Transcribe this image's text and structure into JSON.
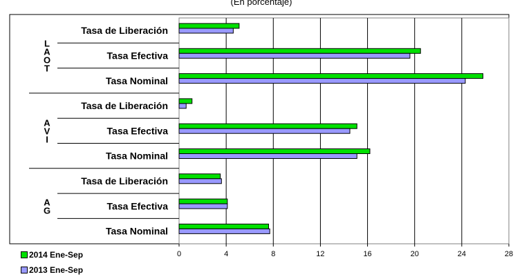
{
  "chart_data": {
    "type": "bar",
    "orientation": "horizontal",
    "subtitle": "(En porcentaje)",
    "groups": [
      {
        "label_chars": [
          "L",
          "A",
          "O",
          "T"
        ],
        "rows": [
          {
            "label": "Tasa de Liberación",
            "values": [
              5.1,
              4.6
            ]
          },
          {
            "label": "Tasa Efectiva",
            "values": [
              20.5,
              19.6
            ]
          },
          {
            "label": "Tasa Nominal",
            "values": [
              25.8,
              24.3
            ]
          }
        ]
      },
      {
        "label_chars": [
          "A",
          "V",
          "I"
        ],
        "rows": [
          {
            "label": "Tasa de Liberación",
            "values": [
              1.1,
              0.6
            ]
          },
          {
            "label": "Tasa Efectiva",
            "values": [
              15.1,
              14.5
            ]
          },
          {
            "label": "Tasa Nominal",
            "values": [
              16.2,
              15.1
            ]
          }
        ]
      },
      {
        "label_chars": [
          "A",
          "G"
        ],
        "rows": [
          {
            "label": "Tasa de Liberación",
            "values": [
              3.5,
              3.6
            ]
          },
          {
            "label": "Tasa Efectiva",
            "values": [
              4.1,
              4.1
            ]
          },
          {
            "label": "Tasa Nominal",
            "values": [
              7.6,
              7.7
            ]
          }
        ]
      }
    ],
    "series": [
      {
        "name": "2014 Ene-Sep",
        "color": "#00e000"
      },
      {
        "name": "2013 Ene-Sep",
        "color": "#9999ff"
      }
    ],
    "xlim": [
      0,
      28
    ],
    "xticks": [
      "0",
      "4",
      "8",
      "12",
      "16",
      "20",
      "24",
      "28"
    ],
    "grid": true,
    "legend_position": "bottom-left"
  }
}
